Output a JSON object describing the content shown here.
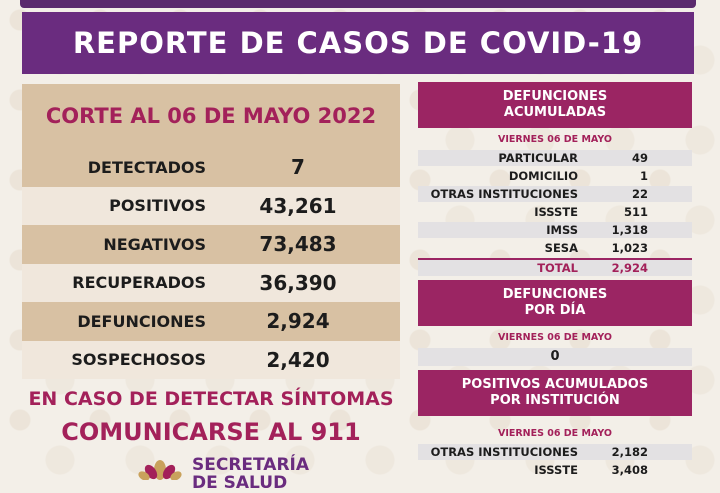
{
  "title": "REPORTE DE CASOS DE COVID-19",
  "corte": "CORTE AL 06 DE MAYO 2022",
  "stats": [
    {
      "label": "DETECTADOS",
      "value": "7"
    },
    {
      "label": "POSITIVOS",
      "value": "43,261"
    },
    {
      "label": "NEGATIVOS",
      "value": "73,483"
    },
    {
      "label": "RECUPERADOS",
      "value": "36,390"
    },
    {
      "label": "DEFUNCIONES",
      "value": "2,924"
    },
    {
      "label": "SOSPECHOSOS",
      "value": "2,420"
    }
  ],
  "alert_line1": "EN CASO DE DETECTAR SÍNTOMAS",
  "alert_line2": "COMUNICARSE AL 911",
  "logo": {
    "line1": "SECRETARÍA",
    "line2": "DE SALUD"
  },
  "defunciones_acumuladas": {
    "header_line1": "DEFUNCIONES",
    "header_line2": "ACUMULADAS",
    "date": "VIERNES 06 DE MAYO",
    "rows": [
      {
        "label": "PARTICULAR",
        "value": "49"
      },
      {
        "label": "DOMICILIO",
        "value": "1"
      },
      {
        "label": "OTRAS INSTITUCIONES",
        "value": "22"
      },
      {
        "label": "ISSSTE",
        "value": "511"
      },
      {
        "label": "IMSS",
        "value": "1,318"
      },
      {
        "label": "SESA",
        "value": "1,023"
      }
    ],
    "total_label": "TOTAL",
    "total_value": "2,924"
  },
  "defunciones_por_dia": {
    "header_line1": "DEFUNCIONES",
    "header_line2": "POR DÍA",
    "date": "VIERNES 06 DE MAYO",
    "value": "0"
  },
  "positivos_por_institucion": {
    "header_line1": "POSITIVOS ACUMULADOS",
    "header_line2": "POR INSTITUCIÓN",
    "date": "VIERNES 06 DE MAYO",
    "rows": [
      {
        "label": "OTRAS INSTITUCIONES",
        "value": "2,182"
      },
      {
        "label": "ISSSTE",
        "value": "3,408"
      }
    ]
  },
  "colors": {
    "purple": "#6a2c7f",
    "magenta": "#9b2563",
    "tan": "#d8c1a3"
  }
}
